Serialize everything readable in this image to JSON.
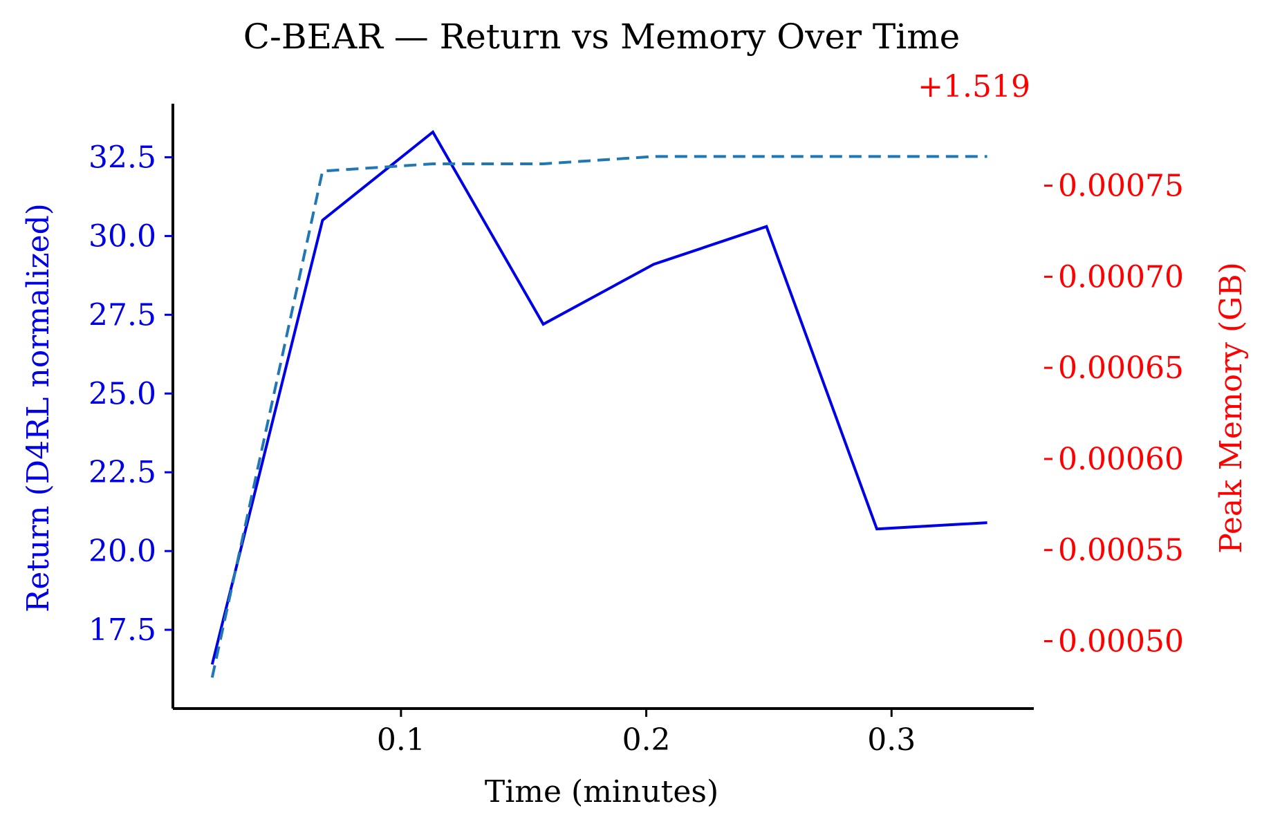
{
  "chart_data": {
    "type": "line",
    "title": "C-BEAR — Return vs Memory Over Time",
    "xlabel": "Time (minutes)",
    "ylabel_left": "Return (D4RL normalized)",
    "ylabel_right": "Peak Memory (GB)",
    "right_offset_label": "+1.519",
    "right_offset": 1.519,
    "xlim": [
      0.007,
      0.358
    ],
    "ylim_left": [
      15.0,
      34.2
    ],
    "ylim_right": [
      0.000463,
      0.000795
    ],
    "x_ticks": [
      0.1,
      0.2,
      0.3
    ],
    "x_tick_labels": [
      "0.1",
      "0.2",
      "0.3"
    ],
    "y_left_ticks": [
      17.5,
      20.0,
      22.5,
      25.0,
      27.5,
      30.0,
      32.5
    ],
    "y_left_tick_labels": [
      "17.5",
      "20.0",
      "22.5",
      "25.0",
      "27.5",
      "30.0",
      "32.5"
    ],
    "y_right_ticks": [
      0.0005,
      0.00055,
      0.0006,
      0.00065,
      0.0007,
      0.00075
    ],
    "y_right_tick_labels": [
      "0.00050",
      "0.00055",
      "0.00060",
      "0.00065",
      "0.00070",
      "0.00075"
    ],
    "grid": false,
    "colors": {
      "return": "#0000e6",
      "memory": "#1f77b4",
      "right_axis": "#ff0000",
      "left_axis": "#0000e6"
    },
    "series": [
      {
        "axis": "left",
        "style": "solid",
        "x": [
          0.023,
          0.068,
          0.113,
          0.158,
          0.203,
          0.249,
          0.294,
          0.339
        ],
        "values": [
          16.4,
          30.5,
          33.3,
          27.2,
          29.1,
          30.3,
          20.7,
          20.9
        ]
      },
      {
        "axis": "right",
        "style": "dashed",
        "x": [
          0.023,
          0.068,
          0.113,
          0.158,
          0.203,
          0.249,
          0.294,
          0.339
        ],
        "values": [
          0.00048,
          0.000758,
          0.000762,
          0.000762,
          0.000766,
          0.000766,
          0.000766,
          0.000766
        ]
      }
    ]
  }
}
